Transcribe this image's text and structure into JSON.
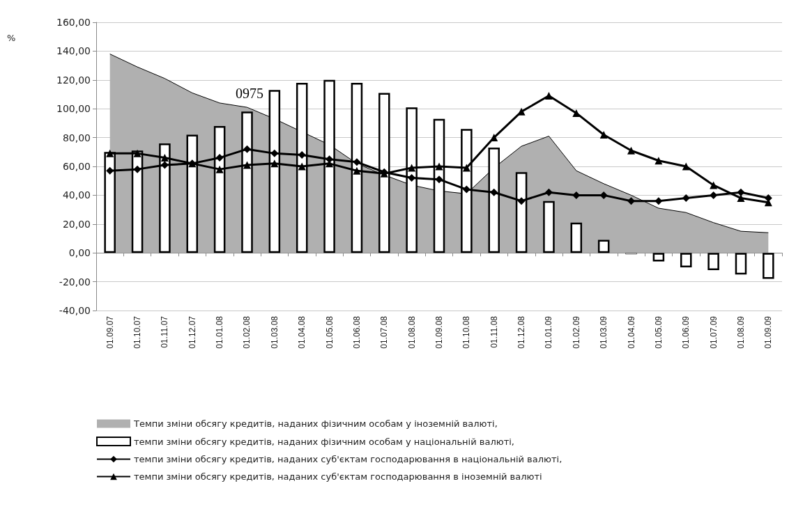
{
  "chart_data": {
    "type": "bar",
    "ylabel": "%",
    "annotations": [
      "0975"
    ],
    "categories": [
      "01.09.07",
      "01.10.07",
      "01.11.07",
      "01.12.07",
      "01.01.08",
      "01.02.08",
      "01.03.08",
      "01.04.08",
      "01.05.08",
      "01.06.08",
      "01.07.08",
      "01.08.08",
      "01.09.08",
      "01.10.08",
      "01.11.08",
      "01.12.08",
      "01.01.09",
      "01.02.09",
      "01.03.09",
      "01.04.09",
      "01.05.09",
      "01.06.09",
      "01.07.09",
      "01.08.09",
      "01.09.09"
    ],
    "series": [
      {
        "name": "Темпи зміни обсягу кредитів, наданих фізичним особам у іноземній валюті,",
        "type": "area",
        "color": "#b0b0b0",
        "marker": "none",
        "values": [
          138,
          129,
          121,
          111,
          104,
          101,
          93,
          84,
          75,
          62,
          54,
          47,
          43,
          41,
          59,
          74,
          81,
          57,
          48,
          40,
          31,
          28,
          21,
          15,
          14
        ]
      },
      {
        "name": "темпи зміни обсягу кредитів, наданих фізичним особам у національній валюті,",
        "type": "bar",
        "color": "#ffffff",
        "values": [
          70,
          71,
          76,
          82,
          88,
          98,
          113,
          118,
          120,
          118,
          111,
          101,
          93,
          86,
          73,
          56,
          36,
          21,
          9,
          -1,
          -6,
          -10,
          -12,
          -15,
          -18
        ]
      },
      {
        "name": "темпи зміни обсягу кредитів, наданих суб'єктам господарювання в національній валюті,",
        "type": "line",
        "color": "#000000",
        "marker": "diamond",
        "values": [
          57,
          58,
          61,
          62,
          66,
          72,
          69,
          68,
          65,
          63,
          56,
          52,
          51,
          44,
          42,
          36,
          42,
          40,
          40,
          36,
          36,
          38,
          40,
          42,
          38
        ]
      },
      {
        "name": "темпи зміни обсягу кредитів, наданих суб'єктам господарювання в іноземній валюті",
        "type": "line",
        "color": "#000000",
        "marker": "triangle",
        "values": [
          69,
          69,
          66,
          62,
          58,
          61,
          62,
          60,
          62,
          57,
          55,
          59,
          60,
          59,
          80,
          98,
          109,
          97,
          82,
          71,
          64,
          60,
          47,
          38,
          35
        ]
      }
    ],
    "ylim": [
      -40,
      160
    ],
    "yticks": [
      {
        "value": -40,
        "label": "-40,00"
      },
      {
        "value": -20,
        "label": "-20,00"
      },
      {
        "value": 0,
        "label": "0,00"
      },
      {
        "value": 20,
        "label": "20,00"
      },
      {
        "value": 40,
        "label": "40,00"
      },
      {
        "value": 60,
        "label": "60,00"
      },
      {
        "value": 80,
        "label": "80,00"
      },
      {
        "value": 100,
        "label": "100,00"
      },
      {
        "value": 120,
        "label": "120,00"
      },
      {
        "value": 140,
        "label": "140,00"
      },
      {
        "value": 160,
        "label": "160,00"
      }
    ],
    "grid": "y",
    "legend": "bottom"
  }
}
